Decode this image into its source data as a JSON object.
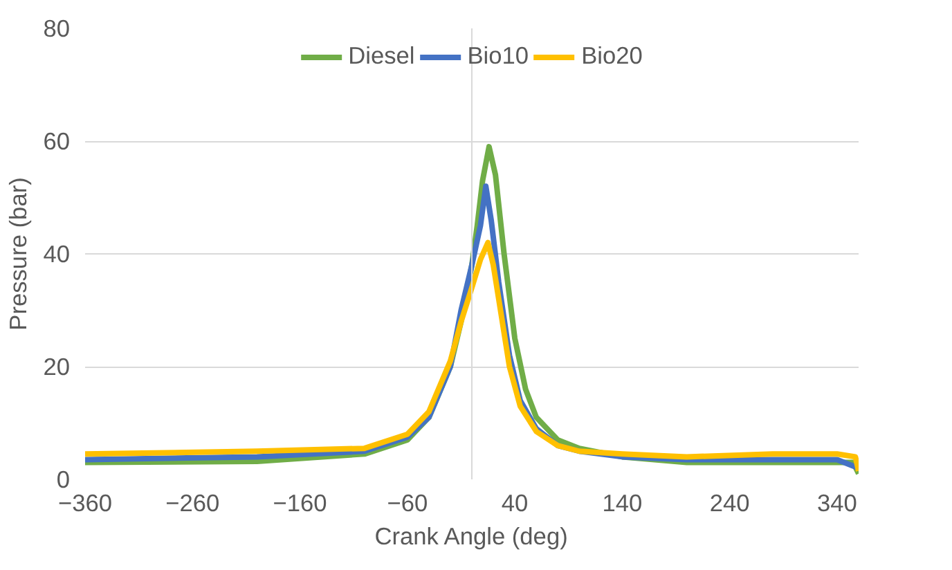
{
  "chart_data": {
    "type": "line",
    "xlabel": "Crank Angle (deg)",
    "ylabel": "Pressure (bar)",
    "xlim": [
      -360,
      360
    ],
    "xticks": [
      -360,
      -260,
      -160,
      -60,
      40,
      140,
      240,
      340
    ],
    "ylim": [
      0,
      80
    ],
    "yticks": [
      0,
      20,
      40,
      60,
      80
    ],
    "grid": "y",
    "legend": "top",
    "marker": "none",
    "line_style": "solid",
    "series": [
      {
        "name": "Diesel",
        "color": "#70ad47",
        "x": [
          -360,
          -200,
          -100,
          -60,
          -40,
          -20,
          -10,
          0,
          5,
          10,
          16,
          22,
          30,
          40,
          50,
          60,
          80,
          100,
          140,
          200,
          280,
          340,
          355,
          360
        ],
        "values": [
          3,
          3.2,
          4.5,
          7,
          11,
          20,
          28,
          38,
          45,
          53,
          59,
          54,
          40,
          25,
          16,
          11,
          7,
          5.5,
          4,
          3,
          3,
          3,
          3,
          1
        ]
      },
      {
        "name": "Bio10",
        "color": "#4472c4",
        "x": [
          -360,
          -200,
          -100,
          -60,
          -40,
          -20,
          -10,
          0,
          8,
          13,
          18,
          25,
          35,
          45,
          60,
          80,
          100,
          140,
          200,
          280,
          340,
          360
        ],
        "values": [
          3.5,
          4,
          5,
          7.5,
          11,
          20,
          30,
          38,
          45,
          52,
          46,
          35,
          22,
          14,
          9,
          6,
          5,
          4,
          3.5,
          3.5,
          3.5,
          2
        ]
      },
      {
        "name": "Bio20",
        "color": "#ffc000",
        "x": [
          -360,
          -200,
          -100,
          -60,
          -40,
          -20,
          -10,
          0,
          8,
          15,
          20,
          25,
          35,
          45,
          60,
          80,
          100,
          140,
          200,
          280,
          340,
          357,
          360
        ],
        "values": [
          4.5,
          5,
          5.5,
          8,
          12,
          21,
          28,
          34,
          39,
          42,
          38,
          32,
          20,
          13,
          8.5,
          6,
          5,
          4.5,
          4,
          4.5,
          4.5,
          4,
          1.5
        ]
      }
    ]
  }
}
